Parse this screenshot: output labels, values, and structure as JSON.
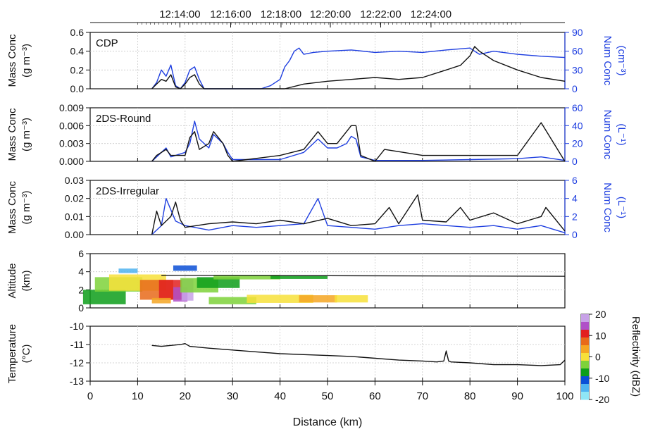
{
  "chart_data": {
    "type": "line",
    "top_axis": {
      "ticks": [
        "12:14:00",
        "12:16:00",
        "12:18:00",
        "12:20:00",
        "12:22:00",
        "12:24:00"
      ]
    },
    "x_axis": {
      "label": "Distance (km)",
      "range": [
        0,
        100
      ],
      "ticks": [
        "0",
        "10",
        "20",
        "30",
        "40",
        "50",
        "60",
        "70",
        "80",
        "90",
        "100"
      ]
    },
    "panels": [
      {
        "label": "CDP",
        "left_axis": {
          "label_line1": "Mass Conc",
          "label_line2": "(g m⁻³)",
          "range": [
            0,
            0.6
          ],
          "ticks": [
            "0.0",
            "0.2",
            "0.4",
            "0.6"
          ]
        },
        "right_axis": {
          "label_line1": "Num Conc",
          "label_line2": "(cm⁻³)",
          "range": [
            0,
            90
          ],
          "ticks": [
            "0",
            "30",
            "60",
            "90"
          ]
        },
        "series": [
          {
            "axis": "right",
            "color": "#1f3fe0",
            "x": [
              13,
              14,
              15,
              16,
              17,
              18,
              19,
              20,
              21,
              22,
              23,
              24,
              25,
              30,
              36,
              38,
              40,
              41,
              42,
              43,
              44,
              45,
              47,
              50,
              55,
              60,
              65,
              70,
              75,
              80,
              81,
              82,
              85,
              90,
              95,
              100
            ],
            "y": [
              0,
              10,
              30,
              20,
              38,
              5,
              0,
              10,
              30,
              35,
              15,
              0,
              0,
              0,
              0,
              5,
              15,
              35,
              45,
              60,
              65,
              55,
              58,
              60,
              62,
              58,
              60,
              58,
              62,
              65,
              60,
              55,
              60,
              55,
              52,
              50
            ]
          },
          {
            "axis": "left",
            "color": "#111111",
            "x": [
              13,
              14,
              15,
              16,
              17,
              18,
              19,
              20,
              21,
              22,
              23,
              24,
              25,
              41,
              45,
              50,
              55,
              60,
              65,
              70,
              75,
              78,
              80,
              81,
              82,
              85,
              90,
              95,
              100
            ],
            "y": [
              0,
              0.05,
              0.1,
              0.08,
              0.15,
              0.02,
              0,
              0.05,
              0.12,
              0.15,
              0.05,
              0,
              0,
              0,
              0.05,
              0.08,
              0.1,
              0.12,
              0.1,
              0.12,
              0.2,
              0.25,
              0.35,
              0.45,
              0.4,
              0.3,
              0.2,
              0.12,
              0.08
            ]
          }
        ]
      },
      {
        "label": "2DS-Round",
        "left_axis": {
          "label_line1": "Mass Conc",
          "label_line2": "(g m⁻³)",
          "range": [
            0,
            0.009
          ],
          "ticks": [
            "0.000",
            "0.003",
            "0.006",
            "0.009"
          ]
        },
        "right_axis": {
          "label_line1": "Num Conc",
          "label_line2": "(L⁻¹)",
          "range": [
            0,
            60
          ],
          "ticks": [
            "0",
            "20",
            "40",
            "60"
          ]
        },
        "series": [
          {
            "axis": "right",
            "color": "#1f3fe0",
            "x": [
              13,
              14,
              16,
              17,
              20,
              21,
              22,
              23,
              25,
              26,
              27,
              28,
              29,
              30,
              40,
              45,
              47,
              48,
              50,
              52,
              54,
              55,
              56,
              57,
              60,
              70,
              80,
              90,
              95,
              100
            ],
            "y": [
              0,
              5,
              15,
              5,
              10,
              20,
              45,
              25,
              15,
              30,
              25,
              20,
              10,
              2,
              2,
              10,
              20,
              25,
              15,
              15,
              20,
              28,
              25,
              5,
              1,
              1,
              2,
              3,
              5,
              1
            ]
          },
          {
            "axis": "left",
            "color": "#111111",
            "x": [
              13,
              14,
              16,
              17,
              20,
              21,
              22,
              23,
              25,
              26,
              27,
              28,
              29,
              30,
              40,
              45,
              47,
              48,
              50,
              52,
              54,
              55,
              56,
              57,
              60,
              62,
              70,
              80,
              90,
              95,
              100
            ],
            "y": [
              0,
              0.001,
              0.002,
              0.001,
              0.001,
              0.004,
              0.005,
              0.002,
              0.003,
              0.005,
              0.004,
              0.003,
              0.001,
              0,
              0.001,
              0.002,
              0.004,
              0.005,
              0.003,
              0.003,
              0.005,
              0.006,
              0.006,
              0.001,
              0,
              0.002,
              0.001,
              0.001,
              0.001,
              0.0065,
              0
            ]
          }
        ]
      },
      {
        "label": "2DS-Irregular",
        "left_axis": {
          "label_line1": "Mass Conc",
          "label_line2": "(g m⁻³)",
          "range": [
            0,
            0.03
          ],
          "ticks": [
            "0.00",
            "0.01",
            "0.02",
            "0.03"
          ]
        },
        "right_axis": {
          "label_line1": "Num Conc",
          "label_line2": "(L⁻¹)",
          "range": [
            0,
            6
          ],
          "ticks": [
            "0",
            "2",
            "4",
            "6"
          ]
        },
        "series": [
          {
            "axis": "right",
            "color": "#1f3fe0",
            "x": [
              13,
              15,
              16,
              18,
              20,
              25,
              30,
              35,
              40,
              45,
              48,
              50,
              55,
              60,
              65,
              70,
              75,
              80,
              85,
              90,
              95,
              100
            ],
            "y": [
              0,
              1,
              4,
              1.5,
              1,
              0.5,
              1,
              0.8,
              1,
              1.2,
              4,
              1,
              0.8,
              0.6,
              1,
              1.2,
              1,
              0.8,
              1,
              0.6,
              1,
              0.2
            ]
          },
          {
            "axis": "left",
            "color": "#111111",
            "x": [
              13,
              14,
              15,
              17,
              18,
              19,
              20,
              25,
              30,
              35,
              40,
              45,
              50,
              55,
              60,
              63,
              65,
              69,
              70,
              75,
              78,
              80,
              85,
              90,
              95,
              96,
              100
            ],
            "y": [
              0,
              0.013,
              0.005,
              0.01,
              0.018,
              0.008,
              0.004,
              0.006,
              0.007,
              0.006,
              0.008,
              0.006,
              0.009,
              0.005,
              0.006,
              0.015,
              0.006,
              0.022,
              0.008,
              0.007,
              0.015,
              0.008,
              0.012,
              0.006,
              0.01,
              0.015,
              0.002
            ]
          }
        ]
      },
      {
        "label": "",
        "left_axis": {
          "label_line1": "Altitude",
          "label_line2": "(km)",
          "range": [
            0,
            6
          ],
          "ticks": [
            "0",
            "2",
            "4",
            "6"
          ]
        },
        "flight_altitude": {
          "color": "#111111",
          "x": [
            15,
            100
          ],
          "y": [
            3.6,
            3.5
          ]
        },
        "reflectivity_field": {
          "kind": "heatmap",
          "x_extent": [
            2,
            61
          ],
          "y_extent": [
            0.2,
            4.6
          ]
        }
      },
      {
        "label": "",
        "left_axis": {
          "label_line1": "Temperature",
          "label_line2": "(°C)",
          "range": [
            -13,
            -10
          ],
          "ticks": [
            "-10",
            "-11",
            "-12",
            "-13"
          ]
        },
        "series": [
          {
            "axis": "left",
            "color": "#111111",
            "x": [
              13,
              15,
              17,
              19,
              20,
              21,
              25,
              30,
              35,
              40,
              45,
              50,
              55,
              60,
              65,
              70,
              73,
              74.5,
              75,
              75.5,
              76,
              80,
              85,
              90,
              95,
              99,
              100
            ],
            "y": [
              -11.05,
              -11.1,
              -11.05,
              -11.0,
              -10.95,
              -11.1,
              -11.2,
              -11.3,
              -11.4,
              -11.5,
              -11.55,
              -11.6,
              -11.65,
              -11.75,
              -11.85,
              -11.9,
              -11.95,
              -11.9,
              -11.35,
              -11.9,
              -11.95,
              -12.0,
              -12.1,
              -12.1,
              -12.15,
              -12.1,
              -11.85
            ]
          }
        ]
      }
    ],
    "colorbar": {
      "label": "Reflectivity (dBZ)",
      "ticks": [
        "20",
        "10",
        "0",
        "-10",
        "-20"
      ],
      "range": [
        -20,
        20
      ],
      "colors": [
        "#c8a2e8",
        "#b04fc8",
        "#e22020",
        "#e86a1a",
        "#f5a623",
        "#f7e03a",
        "#7ed23a",
        "#0d9e1a",
        "#0a4fd6",
        "#4fb3f0",
        "#8fe6f5"
      ]
    }
  }
}
